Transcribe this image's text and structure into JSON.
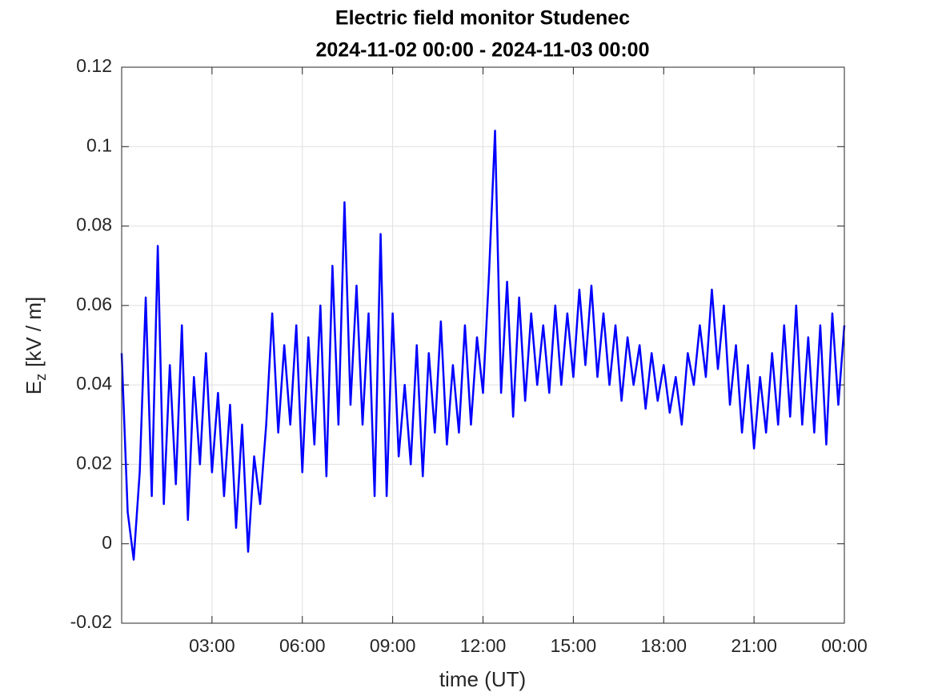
{
  "chart_data": {
    "type": "line",
    "title": "Electric field monitor Studenec",
    "subtitle": "2024-11-02 00:00 - 2024-11-03 00:00",
    "xlabel": "time (UT)",
    "ylabel": {
      "base": "E",
      "subscript": "z",
      "unit": "[kV / m]"
    },
    "x": [
      0,
      0.2,
      0.4,
      0.6,
      0.8,
      1,
      1.2,
      1.4,
      1.6,
      1.8,
      2,
      2.2,
      2.4,
      2.6,
      2.8,
      3,
      3.2,
      3.4,
      3.6,
      3.8,
      4,
      4.2,
      4.4,
      4.6,
      4.8,
      5,
      5.2,
      5.4,
      5.6,
      5.8,
      6,
      6.2,
      6.4,
      6.6,
      6.8,
      7,
      7.2,
      7.4,
      7.6,
      7.8,
      8,
      8.2,
      8.4,
      8.6,
      8.8,
      9,
      9.2,
      9.4,
      9.6,
      9.8,
      10,
      10.2,
      10.4,
      10.6,
      10.8,
      11,
      11.2,
      11.4,
      11.6,
      11.8,
      12,
      12.2,
      12.4,
      12.6,
      12.8,
      13,
      13.2,
      13.4,
      13.6,
      13.8,
      14,
      14.2,
      14.4,
      14.6,
      14.8,
      15,
      15.2,
      15.4,
      15.6,
      15.8,
      16,
      16.2,
      16.4,
      16.6,
      16.8,
      17,
      17.2,
      17.4,
      17.6,
      17.8,
      18,
      18.2,
      18.4,
      18.6,
      18.8,
      19,
      19.2,
      19.4,
      19.6,
      19.8,
      20,
      20.2,
      20.4,
      20.6,
      20.8,
      21,
      21.2,
      21.4,
      21.6,
      21.8,
      22,
      22.2,
      22.4,
      22.6,
      22.8,
      23,
      23.2,
      23.4,
      23.6,
      23.8,
      24
    ],
    "series": [
      {
        "name": "Ez",
        "color": "#0000ff",
        "values": [
          0.048,
          0.008,
          -0.004,
          0.018,
          0.062,
          0.012,
          0.075,
          0.01,
          0.045,
          0.015,
          0.055,
          0.006,
          0.042,
          0.02,
          0.048,
          0.018,
          0.038,
          0.012,
          0.035,
          0.004,
          0.03,
          -0.002,
          0.022,
          0.01,
          0.03,
          0.058,
          0.028,
          0.05,
          0.03,
          0.055,
          0.018,
          0.052,
          0.025,
          0.06,
          0.017,
          0.07,
          0.03,
          0.086,
          0.035,
          0.065,
          0.03,
          0.058,
          0.012,
          0.078,
          0.012,
          0.058,
          0.022,
          0.04,
          0.02,
          0.05,
          0.017,
          0.048,
          0.028,
          0.056,
          0.025,
          0.045,
          0.028,
          0.055,
          0.03,
          0.052,
          0.038,
          0.068,
          0.104,
          0.038,
          0.066,
          0.032,
          0.062,
          0.036,
          0.058,
          0.04,
          0.055,
          0.038,
          0.06,
          0.04,
          0.058,
          0.042,
          0.064,
          0.045,
          0.065,
          0.042,
          0.058,
          0.04,
          0.055,
          0.036,
          0.052,
          0.04,
          0.05,
          0.034,
          0.048,
          0.036,
          0.045,
          0.033,
          0.042,
          0.03,
          0.048,
          0.04,
          0.055,
          0.042,
          0.064,
          0.044,
          0.06,
          0.035,
          0.05,
          0.028,
          0.045,
          0.024,
          0.042,
          0.028,
          0.048,
          0.03,
          0.055,
          0.032,
          0.06,
          0.03,
          0.052,
          0.028,
          0.055,
          0.025,
          0.058,
          0.035,
          0.055
        ]
      }
    ],
    "xlim": [
      0,
      24
    ],
    "xticks": [
      {
        "value": 3,
        "label": "03:00"
      },
      {
        "value": 6,
        "label": "06:00"
      },
      {
        "value": 9,
        "label": "09:00"
      },
      {
        "value": 12,
        "label": "12:00"
      },
      {
        "value": 15,
        "label": "15:00"
      },
      {
        "value": 18,
        "label": "18:00"
      },
      {
        "value": 21,
        "label": "21:00"
      },
      {
        "value": 24,
        "label": "00:00"
      }
    ],
    "ylim": [
      -0.02,
      0.12
    ],
    "yticks": [
      -0.02,
      0,
      0.02,
      0.04,
      0.06,
      0.08,
      0.1,
      0.12
    ],
    "grid": true
  }
}
